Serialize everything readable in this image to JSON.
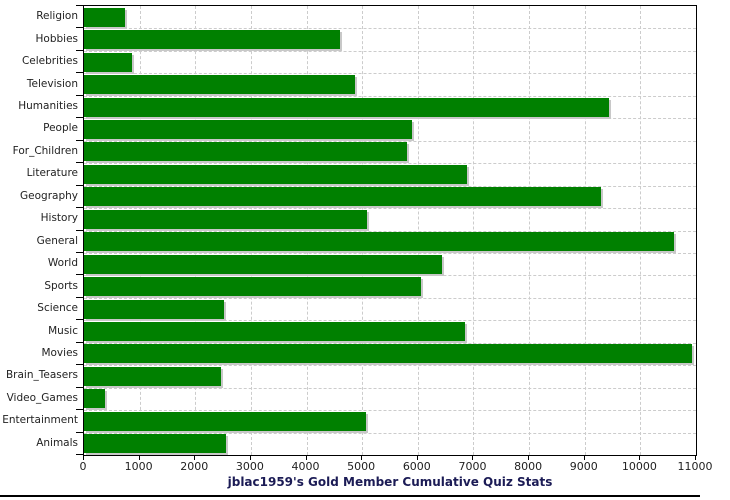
{
  "chart_data": {
    "type": "bar",
    "orientation": "horizontal",
    "title": "jblac1959's Gold Member Cumulative Quiz Stats",
    "categories": [
      "Religion",
      "Hobbies",
      "Celebrities",
      "Television",
      "Humanities",
      "People",
      "For_Children",
      "Literature",
      "Geography",
      "History",
      "General",
      "World",
      "Sports",
      "Science",
      "Music",
      "Movies",
      "Brain_Teasers",
      "Video_Games",
      "Entertainment",
      "Animals"
    ],
    "values": [
      730,
      4600,
      870,
      4870,
      9440,
      5890,
      5800,
      6890,
      9300,
      5080,
      10600,
      6430,
      6050,
      2520,
      6840,
      10930,
      2460,
      370,
      5060,
      2560
    ],
    "xlim": [
      0,
      11000
    ],
    "x_tick_interval": 1000,
    "x_tick_labels": [
      "0",
      "1000",
      "2000",
      "3000",
      "4000",
      "5000",
      "6000",
      "7000",
      "8000",
      "9000",
      "10000",
      "11000"
    ],
    "grid": "dashed",
    "legend": "none",
    "xlabel": "",
    "ylabel": "",
    "colors": {
      "bar": "#008000",
      "bar_shadow": "#c8c8c8",
      "gridline": "#cccccc",
      "plot_border": "#000000",
      "label": "#222222",
      "title": "#1b1b55",
      "background": "#ffffff"
    }
  }
}
